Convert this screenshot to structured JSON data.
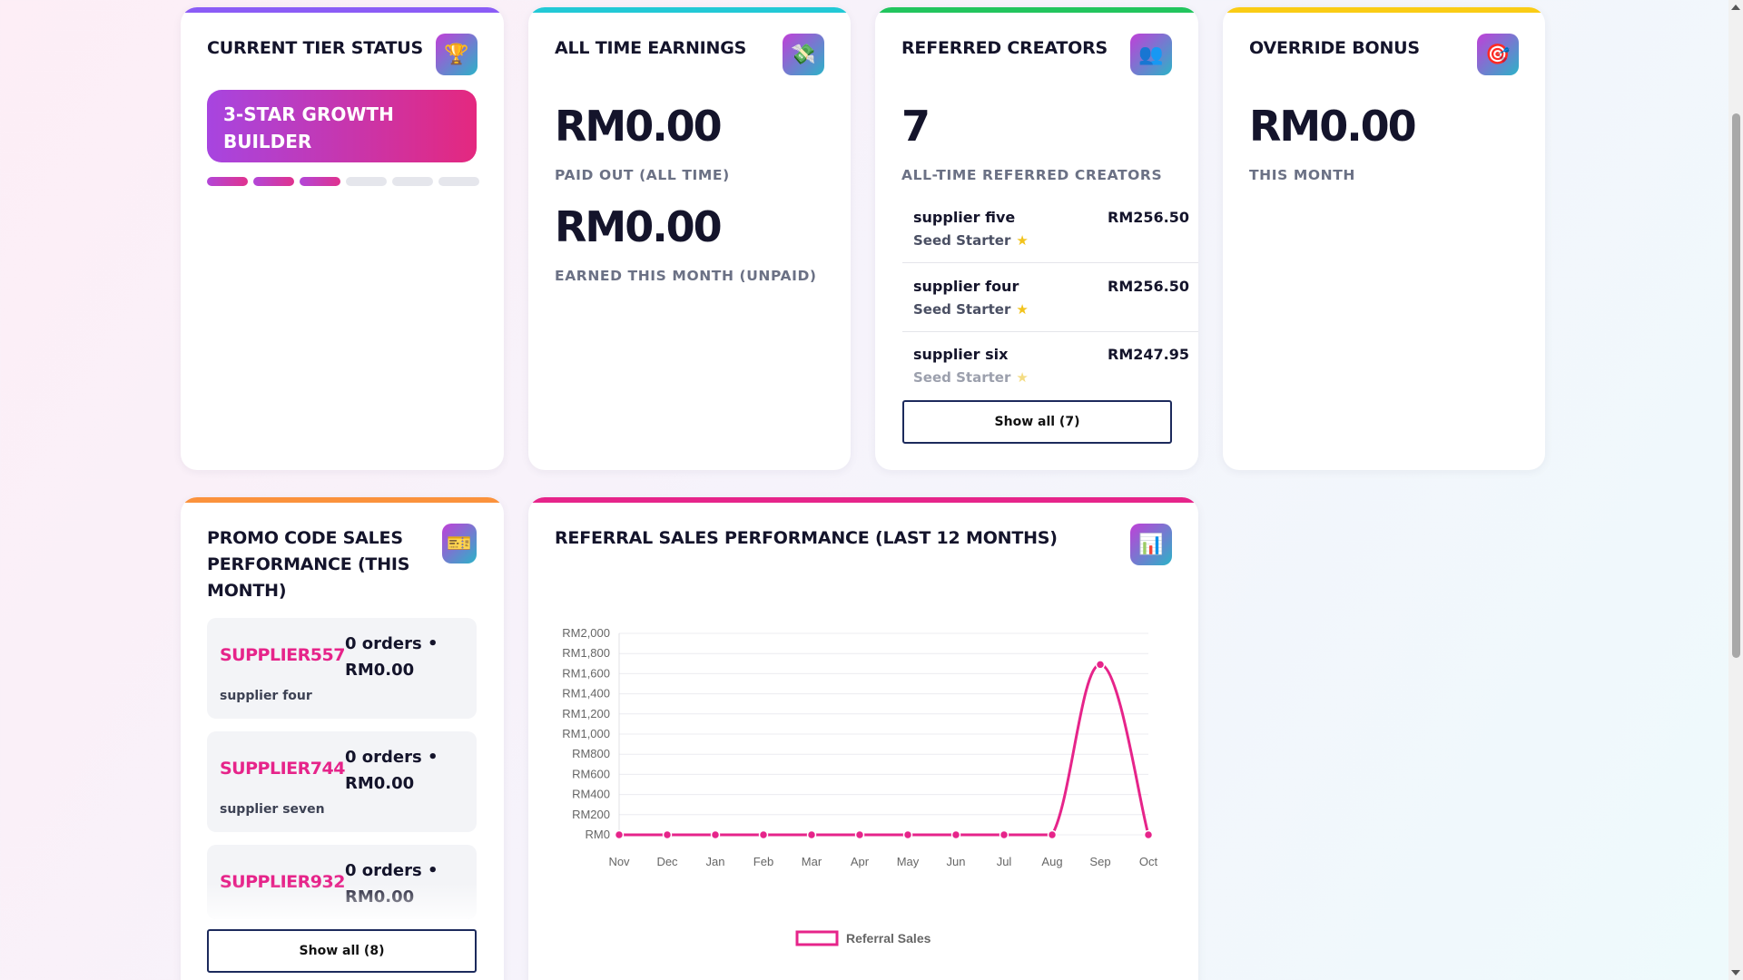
{
  "cards": {
    "tier": {
      "title": "Current Tier Status",
      "icon": "trophy-icon",
      "tier_name": "3-Star Growth Builder",
      "progress_filled": 3,
      "progress_total": 6,
      "accent": "#8b5cf6"
    },
    "earnings": {
      "title": "All Time Earnings",
      "icon": "money-icon",
      "paid_out_value": "RM0.00",
      "paid_out_label": "Paid Out (All Time)",
      "month_value": "RM0.00",
      "month_label": "Earned This Month (Unpaid)",
      "accent": "#22c9d6"
    },
    "referred": {
      "title": "Referred Creators",
      "icon": "people-icon",
      "count": "7",
      "count_label": "All-Time Referred Creators",
      "accent": "#22c55e",
      "rows": [
        {
          "name": "supplier five",
          "amount": "RM256.50",
          "tier": "Seed Starter"
        },
        {
          "name": "supplier four",
          "amount": "RM256.50",
          "tier": "Seed Starter"
        },
        {
          "name": "supplier six",
          "amount": "RM247.95",
          "tier": "Seed Starter"
        }
      ],
      "show_all_label": "Show all (7)"
    },
    "override": {
      "title": "Override Bonus",
      "icon": "target-icon",
      "value": "RM0.00",
      "label": "This Month",
      "accent": "#facc15"
    },
    "promo": {
      "title": "Promo Code Sales Performance (This Month)",
      "icon": "ticket-icon",
      "accent": "#fb923c",
      "items": [
        {
          "code": "SUPPLIER557",
          "stats": "0 orders • RM0.00",
          "owner": "supplier four"
        },
        {
          "code": "SUPPLIER744",
          "stats": "0 orders • RM0.00",
          "owner": "supplier seven"
        },
        {
          "code": "SUPPLIER932",
          "stats": "0 orders • RM0.00",
          "owner": ""
        }
      ],
      "show_all_label": "Show all (8)"
    },
    "chart_card": {
      "title": "Referral Sales Performance (Last 12 Months)",
      "icon": "bar-chart-icon",
      "accent": "#e6248a"
    }
  },
  "chart_data": {
    "type": "line",
    "title": "",
    "xlabel": "",
    "ylabel": "",
    "categories": [
      "Nov",
      "Dec",
      "Jan",
      "Feb",
      "Mar",
      "Apr",
      "May",
      "Jun",
      "Jul",
      "Aug",
      "Sep",
      "Oct"
    ],
    "series": [
      {
        "name": "Referral Sales",
        "values": [
          0,
          0,
          0,
          0,
          0,
          0,
          0,
          0,
          0,
          0,
          1690,
          0
        ],
        "color": "#e6248a"
      }
    ],
    "ylim": [
      0,
      2000
    ],
    "y_ticks": [
      0,
      200,
      400,
      600,
      800,
      1000,
      1200,
      1400,
      1600,
      1800,
      2000
    ],
    "y_tick_labels": [
      "RM0",
      "RM200",
      "RM400",
      "RM600",
      "RM800",
      "RM1,000",
      "RM1,200",
      "RM1,400",
      "RM1,600",
      "RM1,800",
      "RM2,000"
    ],
    "grid": true,
    "legend": "bottom"
  }
}
